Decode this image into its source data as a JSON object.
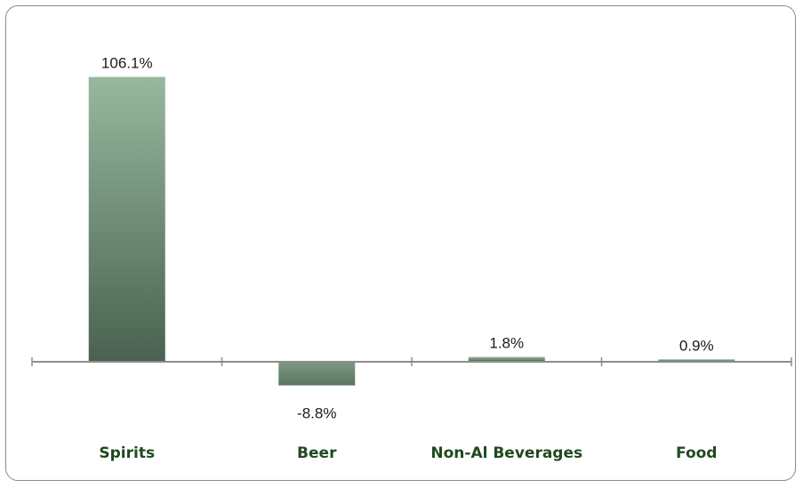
{
  "chart_data": {
    "type": "bar",
    "categories": [
      "Spirits",
      "Beer",
      "Non-Al Beverages",
      "Food"
    ],
    "values": [
      106.1,
      -8.8,
      1.8,
      0.9
    ],
    "value_labels": [
      "106.1%",
      "-8.8%",
      "1.8%",
      "0.9%"
    ],
    "title": "",
    "xlabel": "",
    "ylabel": "",
    "ylim": [
      -12,
      114
    ],
    "grid": false,
    "legend": "none",
    "colors": {
      "bar_top": "#97b89e",
      "bar_bottom": "#4a6150",
      "neg_bar_top": "#7d9a84",
      "neg_bar_bottom": "#5a7561",
      "axis": "#8c8c8c",
      "category_label": "#1f4a1f",
      "frame": "#8a8a8a"
    }
  }
}
